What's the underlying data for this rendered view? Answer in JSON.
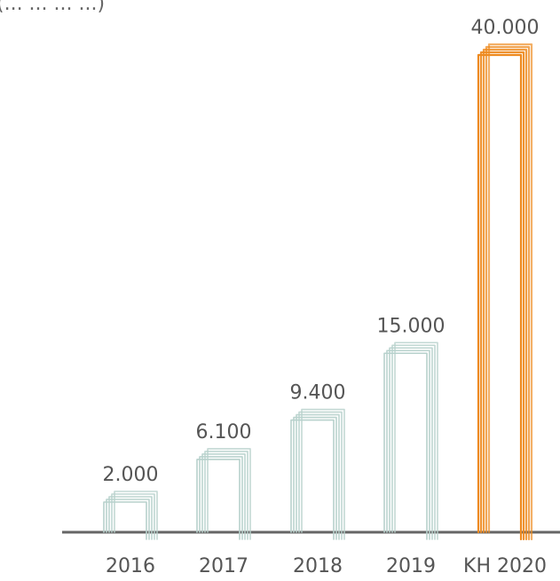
{
  "header_note": "(... ... ... ...)",
  "chart_data": {
    "type": "bar",
    "categories": [
      "2016",
      "2017",
      "2018",
      "2019",
      "KH 2020"
    ],
    "values": [
      2000,
      6100,
      9400,
      15000,
      40000
    ],
    "value_labels": [
      "2.000",
      "6.100",
      "9.400",
      "15.000",
      "40.000"
    ],
    "title": "",
    "xlabel": "",
    "ylabel": "",
    "ylim": [
      0,
      40000
    ],
    "grid": false,
    "legend": "none",
    "highlight_category": "KH 2020",
    "colors": {
      "normal": "#b7d1cc",
      "highlight": "#ee8a1f",
      "axis": "#666666",
      "text": "#555555"
    }
  }
}
